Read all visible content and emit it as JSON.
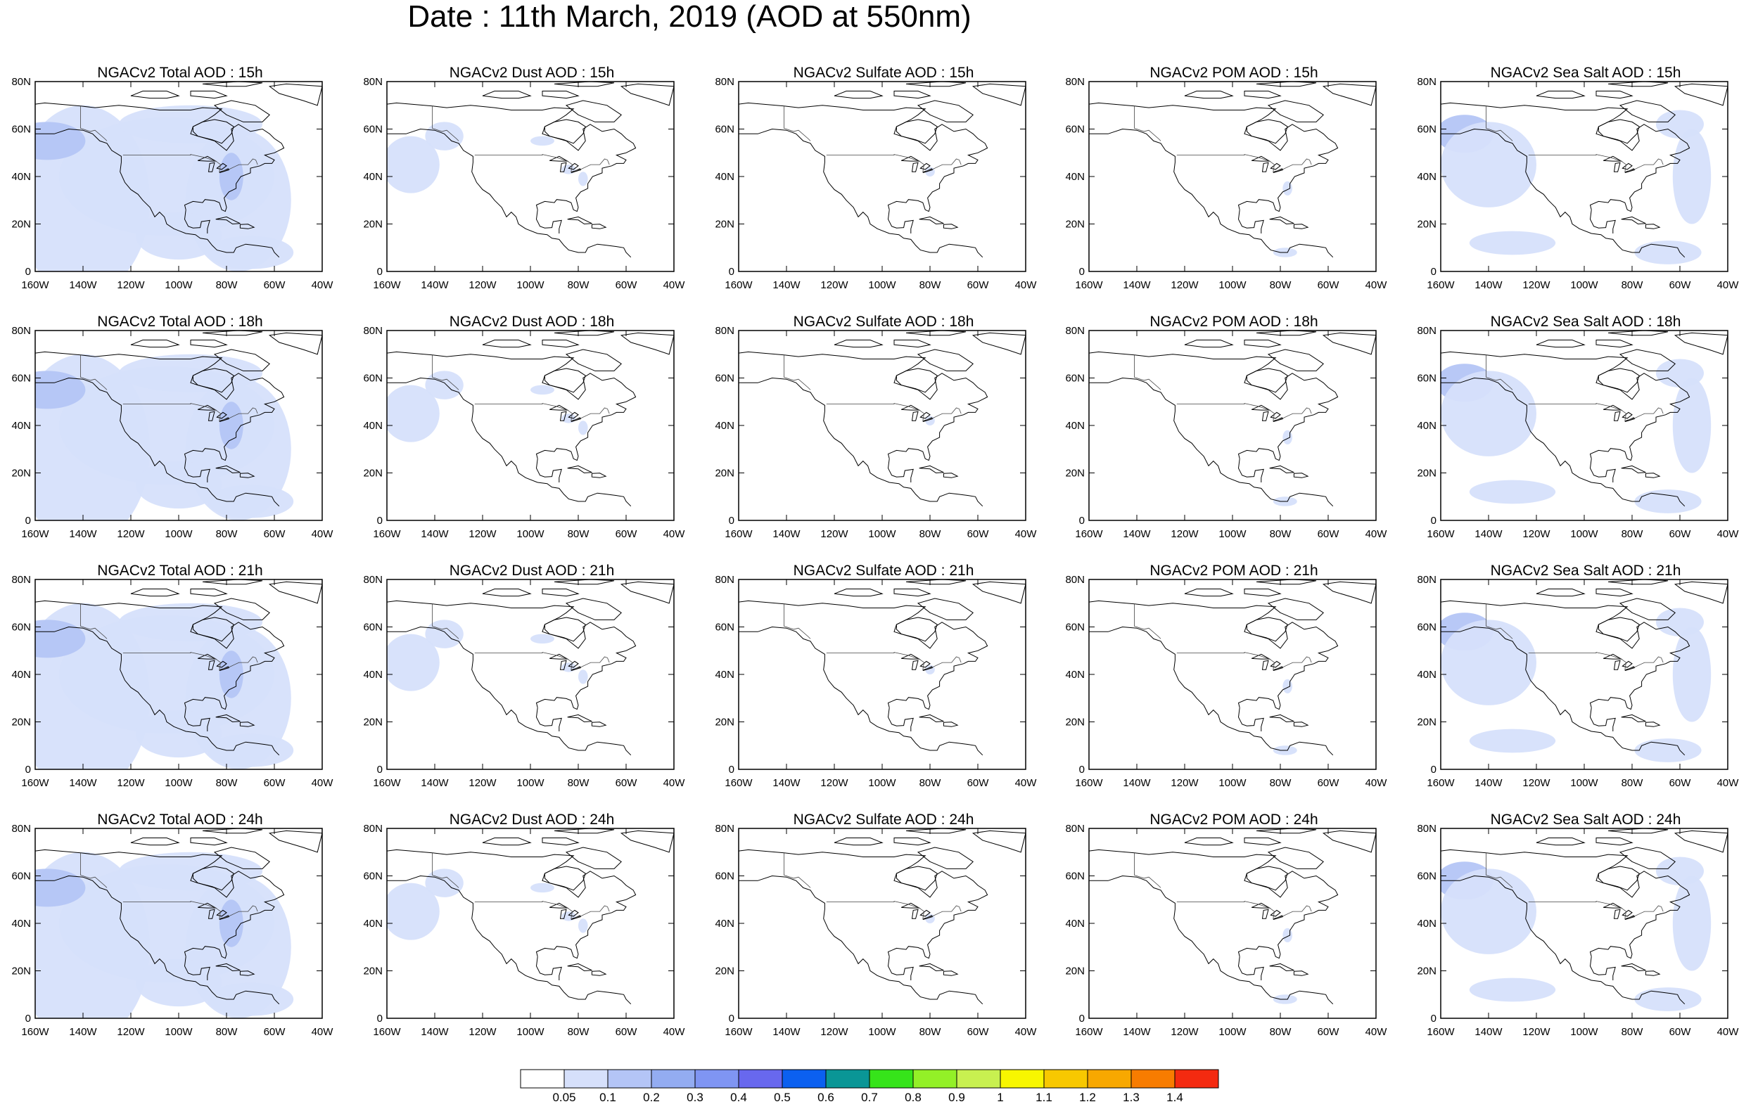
{
  "title": "Date : 11th March, 2019 (AOD at 550nm)",
  "lat_labels": [
    "80N",
    "60N",
    "40N",
    "20N",
    "0"
  ],
  "lon_labels": [
    "160W",
    "140W",
    "120W",
    "100W",
    "80W",
    "60W",
    "40W"
  ],
  "legend": {
    "colors": [
      "#ffffff",
      "#d6e0fb",
      "#b4c5f6",
      "#93acf1",
      "#7f95f3",
      "#6868ee",
      "#0b60f0",
      "#0a9696",
      "#36e41a",
      "#93f027",
      "#c8f050",
      "#f8f600",
      "#f8c800",
      "#f8a800",
      "#f87c00",
      "#f42a10"
    ],
    "labels": [
      "0.05",
      "0.1",
      "0.2",
      "0.3",
      "0.4",
      "0.5",
      "0.6",
      "0.7",
      "0.8",
      "0.9",
      "1",
      "1.1",
      "1.2",
      "1.3",
      "1.4"
    ]
  },
  "panels": [
    {
      "title": "NGACv2 Total AOD : 15h",
      "type": "total"
    },
    {
      "title": "NGACv2 Dust AOD : 15h",
      "type": "dust"
    },
    {
      "title": "NGACv2 Sulfate AOD : 15h",
      "type": "sulfate"
    },
    {
      "title": "NGACv2 POM AOD : 15h",
      "type": "pom"
    },
    {
      "title": "NGACv2 Sea Salt AOD : 15h",
      "type": "seasalt"
    },
    {
      "title": "NGACv2 Total AOD : 18h",
      "type": "total"
    },
    {
      "title": "NGACv2 Dust AOD : 18h",
      "type": "dust"
    },
    {
      "title": "NGACv2 Sulfate AOD : 18h",
      "type": "sulfate"
    },
    {
      "title": "NGACv2 POM AOD : 18h",
      "type": "pom"
    },
    {
      "title": "NGACv2 Sea Salt AOD : 18h",
      "type": "seasalt"
    },
    {
      "title": "NGACv2 Total AOD : 21h",
      "type": "total"
    },
    {
      "title": "NGACv2 Dust AOD : 21h",
      "type": "dust"
    },
    {
      "title": "NGACv2 Sulfate AOD : 21h",
      "type": "sulfate"
    },
    {
      "title": "NGACv2 POM AOD : 21h",
      "type": "pom"
    },
    {
      "title": "NGACv2 Sea Salt AOD : 21h",
      "type": "seasalt"
    },
    {
      "title": "NGACv2 Total AOD : 24h",
      "type": "total"
    },
    {
      "title": "NGACv2 Dust AOD : 24h",
      "type": "dust"
    },
    {
      "title": "NGACv2 Sulfate AOD : 24h",
      "type": "sulfate"
    },
    {
      "title": "NGACv2 POM AOD : 24h",
      "type": "pom"
    },
    {
      "title": "NGACv2 Sea Salt  AOD : 24h",
      "type": "seasalt"
    }
  ]
}
